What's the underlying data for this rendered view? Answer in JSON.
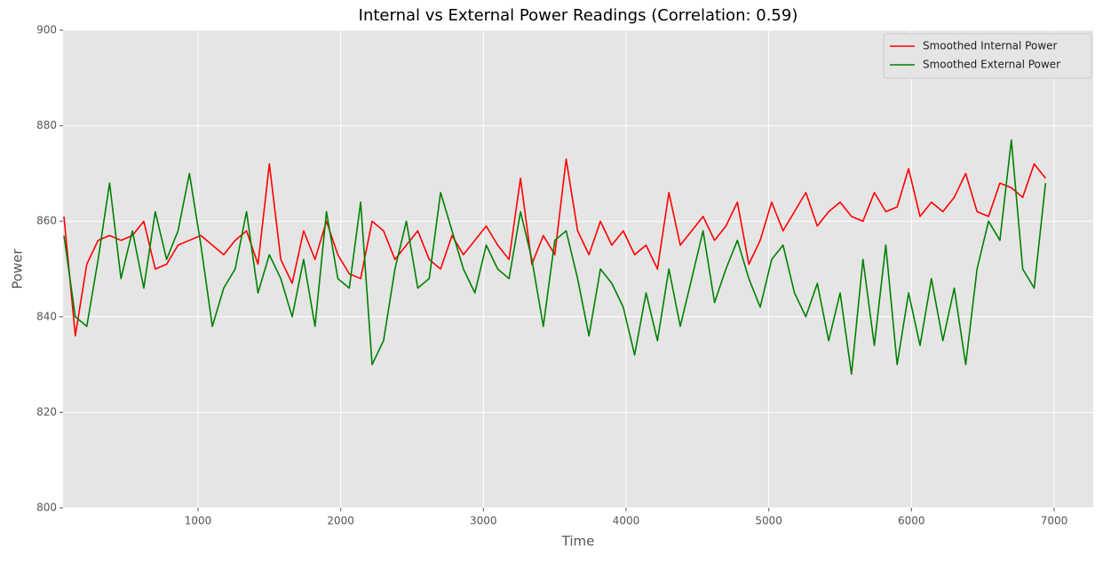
{
  "chart_data": {
    "type": "line",
    "title": "Internal vs External Power Readings (Correlation: 0.59)",
    "xlabel": "Time",
    "ylabel": "Power",
    "x": [
      60,
      140,
      220,
      300,
      380,
      460,
      540,
      620,
      700,
      780,
      860,
      940,
      1020,
      1100,
      1180,
      1260,
      1340,
      1420,
      1500,
      1580,
      1660,
      1740,
      1820,
      1900,
      1980,
      2060,
      2140,
      2220,
      2300,
      2380,
      2460,
      2540,
      2620,
      2700,
      2780,
      2860,
      2940,
      3020,
      3100,
      3180,
      3260,
      3340,
      3420,
      3500,
      3580,
      3660,
      3740,
      3820,
      3900,
      3980,
      4060,
      4140,
      4220,
      4300,
      4380,
      4460,
      4540,
      4620,
      4700,
      4780,
      4860,
      4940,
      5020,
      5100,
      5180,
      5260,
      5340,
      5420,
      5500,
      5580,
      5660,
      5740,
      5820,
      5900,
      5980,
      6060,
      6140,
      6220,
      6300,
      6380,
      6460,
      6540,
      6620,
      6700,
      6780,
      6860,
      6940
    ],
    "series": [
      {
        "name": "Smoothed Internal Power",
        "color": "#ff0000",
        "values": [
          861,
          836,
          851,
          856,
          857,
          856,
          857,
          860,
          850,
          851,
          855,
          856,
          857,
          855,
          853,
          856,
          858,
          851,
          872,
          852,
          847,
          858,
          852,
          860,
          853,
          849,
          848,
          860,
          858,
          852,
          855,
          858,
          852,
          850,
          857,
          853,
          856,
          859,
          855,
          852,
          869,
          851,
          857,
          853,
          873,
          858,
          853,
          860,
          855,
          858,
          853,
          855,
          850,
          866,
          855,
          858,
          861,
          856,
          859,
          864,
          851,
          856,
          864,
          858,
          862,
          866,
          859,
          862,
          864,
          861,
          860,
          866,
          862,
          863,
          871,
          861,
          864,
          862,
          865,
          870,
          862,
          861,
          868,
          867,
          865,
          872,
          869
        ]
      },
      {
        "name": "Smoothed External Power",
        "color": "#008000",
        "values": [
          857,
          840,
          838,
          852,
          868,
          848,
          858,
          846,
          862,
          852,
          858,
          870,
          855,
          838,
          846,
          850,
          862,
          845,
          853,
          848,
          840,
          852,
          838,
          862,
          848,
          846,
          864,
          830,
          835,
          850,
          860,
          846,
          848,
          866,
          858,
          850,
          845,
          855,
          850,
          848,
          862,
          852,
          838,
          856,
          858,
          848,
          836,
          850,
          847,
          842,
          832,
          845,
          835,
          850,
          838,
          848,
          858,
          843,
          850,
          856,
          848,
          842,
          852,
          855,
          845,
          840,
          847,
          835,
          845,
          828,
          852,
          834,
          855,
          830,
          845,
          834,
          848,
          835,
          846,
          830,
          850,
          860,
          856,
          877,
          850,
          846,
          868
        ]
      }
    ],
    "xlim": [
      54,
      7274
    ],
    "xticks": [
      1000,
      2000,
      3000,
      4000,
      5000,
      6000,
      7000
    ],
    "ylim": [
      800,
      900
    ],
    "yticks": [
      800,
      820,
      840,
      860,
      880,
      900
    ],
    "grid": true,
    "legend": "upper right"
  }
}
